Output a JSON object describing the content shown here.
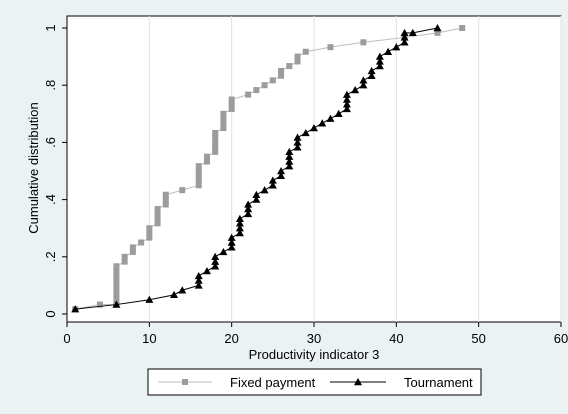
{
  "chart_data": {
    "type": "line",
    "xlabel": "Productivity indicator 3",
    "ylabel": "Cumulative distribution",
    "xlim": [
      0,
      60
    ],
    "ylim": [
      0,
      1
    ],
    "x_ticks": [
      0,
      10,
      20,
      30,
      40,
      50,
      60
    ],
    "x_tick_labels": [
      "0",
      "10",
      "20",
      "30",
      "40",
      "50",
      "60"
    ],
    "y_ticks": [
      0,
      0.2,
      0.4,
      0.6,
      0.8,
      1
    ],
    "y_tick_labels": [
      "0",
      ".2",
      ".4",
      ".6",
      ".8",
      "1"
    ],
    "grid": "vertical",
    "legend_position": "bottom",
    "series": [
      {
        "name": "Fixed payment",
        "marker": "square",
        "color": "#9c9c9c",
        "line_color": "#bdbdbd",
        "x": [
          1,
          4,
          6,
          6,
          6,
          6,
          6,
          6,
          6,
          6,
          6,
          7,
          7,
          8,
          8,
          9,
          10,
          10,
          10,
          11,
          11,
          11,
          11,
          12,
          12,
          12,
          14,
          16,
          16,
          16,
          16,
          16,
          17,
          17,
          18,
          18,
          18,
          18,
          18,
          19,
          19,
          19,
          19,
          20,
          20,
          20,
          22,
          23,
          24,
          25,
          26,
          26,
          27,
          28,
          28,
          29,
          32,
          36,
          41,
          45,
          48
        ],
        "y": [
          0.017,
          0.033,
          0.033,
          0.05,
          0.067,
          0.083,
          0.1,
          0.117,
          0.133,
          0.15,
          0.167,
          0.183,
          0.2,
          0.217,
          0.233,
          0.25,
          0.267,
          0.283,
          0.3,
          0.317,
          0.333,
          0.35,
          0.367,
          0.383,
          0.4,
          0.417,
          0.433,
          0.45,
          0.467,
          0.483,
          0.5,
          0.517,
          0.533,
          0.55,
          0.567,
          0.583,
          0.6,
          0.617,
          0.633,
          0.65,
          0.667,
          0.683,
          0.7,
          0.717,
          0.733,
          0.75,
          0.767,
          0.783,
          0.8,
          0.817,
          0.833,
          0.85,
          0.867,
          0.883,
          0.9,
          0.917,
          0.933,
          0.95,
          0.967,
          0.983,
          1.0
        ]
      },
      {
        "name": "Tournament",
        "marker": "triangle",
        "color": "#000000",
        "line_color": "#000000",
        "x": [
          1,
          6,
          10,
          13,
          14,
          16,
          16,
          16,
          17,
          18,
          18,
          18,
          19,
          20,
          20,
          20,
          21,
          21,
          21,
          21,
          22,
          22,
          22,
          23,
          23,
          24,
          25,
          25,
          26,
          26,
          27,
          27,
          27,
          27,
          28,
          28,
          28,
          29,
          30,
          31,
          32,
          33,
          34,
          34,
          34,
          34,
          35,
          36,
          36,
          37,
          37,
          38,
          38,
          38,
          39,
          40,
          41,
          41,
          41,
          42,
          45
        ],
        "y": [
          0.017,
          0.033,
          0.05,
          0.067,
          0.083,
          0.1,
          0.117,
          0.133,
          0.15,
          0.167,
          0.183,
          0.2,
          0.217,
          0.233,
          0.25,
          0.267,
          0.283,
          0.3,
          0.317,
          0.333,
          0.35,
          0.367,
          0.383,
          0.4,
          0.417,
          0.433,
          0.45,
          0.467,
          0.483,
          0.5,
          0.517,
          0.533,
          0.55,
          0.567,
          0.583,
          0.6,
          0.617,
          0.633,
          0.65,
          0.667,
          0.683,
          0.7,
          0.717,
          0.733,
          0.75,
          0.767,
          0.783,
          0.8,
          0.817,
          0.833,
          0.85,
          0.867,
          0.883,
          0.9,
          0.917,
          0.933,
          0.95,
          0.967,
          0.983,
          0.983,
          1.0
        ]
      }
    ]
  }
}
